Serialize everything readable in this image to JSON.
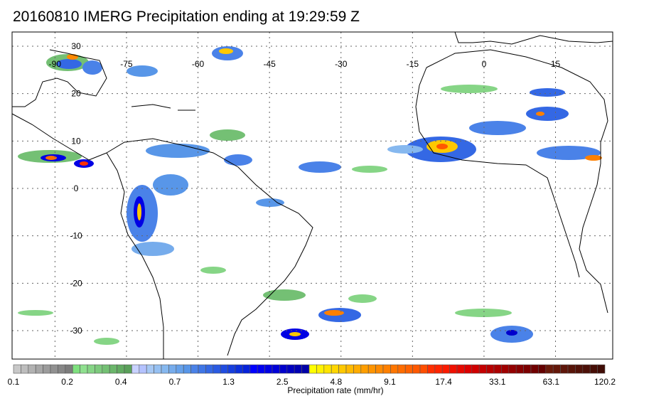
{
  "title": "20160810 IMERG Precipitation ending at 19:29:59 Z",
  "map": {
    "lon_range": [
      -99,
      27
    ],
    "lat_range": [
      -36,
      33
    ],
    "grid": true,
    "lon_labels": [
      "-90",
      "-75",
      "-60",
      "-45",
      "-30",
      "-15",
      "0",
      "15"
    ],
    "lat_labels": [
      "30",
      "20",
      "10",
      "0",
      "-10",
      "-20",
      "-30"
    ],
    "lon_values": [
      -90,
      -75,
      -60,
      -45,
      -30,
      -15,
      0,
      15
    ],
    "lat_values": [
      30,
      20,
      10,
      0,
      -10,
      -20,
      -30
    ]
  },
  "colorbar": {
    "title": "Precipitation rate (mm/hr)",
    "tick_labels": [
      "0.1",
      "0.2",
      "0.4",
      "0.7",
      "1.3",
      "2.5",
      "4.8",
      "9.1",
      "17.4",
      "33.1",
      "63.1",
      "120.2"
    ],
    "groups": [
      {
        "colors": [
          "#c8c8c8",
          "#bdbdbd",
          "#b2b2b2",
          "#a7a7a7",
          "#9c9c9c",
          "#919191",
          "#878787",
          "#7c7c7c"
        ]
      },
      {
        "colors": [
          "#7ee07e",
          "#8fe08f",
          "#86d586",
          "#7dca7d",
          "#74c074",
          "#6bb66b",
          "#62ab62",
          "#5aa05a"
        ]
      },
      {
        "colors": [
          "#c8d2ff",
          "#b4c2ff",
          "#a6c8f4",
          "#96c0f2",
          "#86b8ef",
          "#76acec",
          "#66a1ea",
          "#5896e8"
        ]
      },
      {
        "colors": [
          "#4a82e8",
          "#3f76e6",
          "#3468e4",
          "#2a5ae2",
          "#204ce0",
          "#163ede",
          "#0c30dc",
          "#0622da"
        ]
      },
      {
        "colors": [
          "#0000ff",
          "#0000f0",
          "#0000e4",
          "#0000d8",
          "#0000cc",
          "#0000c0",
          "#0000b4",
          "#0000a8"
        ]
      },
      {
        "colors": [
          "#ffff00",
          "#fff200",
          "#ffe400",
          "#ffd600",
          "#ffc800",
          "#ffba00",
          "#ffac00",
          "#ff9e00"
        ]
      },
      {
        "colors": [
          "#ff9400",
          "#ff8a00",
          "#ff8000",
          "#ff7600",
          "#ff6c00",
          "#ff6200",
          "#ff5800",
          "#ff4e00"
        ]
      },
      {
        "colors": [
          "#ff2e00",
          "#ff2400",
          "#fa1a00",
          "#f01000",
          "#e60800",
          "#dc0000",
          "#d00000",
          "#c40000"
        ]
      },
      {
        "colors": [
          "#b80000",
          "#ac0000",
          "#a00000",
          "#940000",
          "#880000",
          "#7c0000",
          "#700000",
          "#640000"
        ]
      },
      {
        "colors": [
          "#6a1a0a",
          "#64180a",
          "#5e160a",
          "#581408",
          "#521208",
          "#4c1008",
          "#460e06",
          "#400c06"
        ]
      }
    ]
  }
}
